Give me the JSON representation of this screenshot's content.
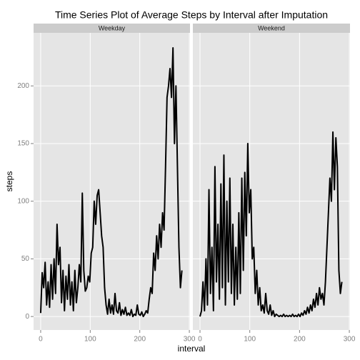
{
  "chart_data": {
    "type": "line",
    "title": "Time Series Plot of Average Steps by Interval after Imputation",
    "xlabel": "interval",
    "ylabel": "steps",
    "xlim": [
      -14.35,
      301.35
    ],
    "ylim": [
      -11.7,
      246
    ],
    "xticks": [
      0,
      100,
      200,
      300
    ],
    "yticks": [
      0,
      50,
      100,
      150,
      200
    ],
    "grid": true,
    "color": "#000000",
    "x": [
      0,
      3,
      6,
      9,
      12,
      15,
      18,
      21,
      24,
      27,
      30,
      33,
      36,
      39,
      42,
      45,
      48,
      51,
      54,
      57,
      60,
      63,
      66,
      69,
      72,
      75,
      78,
      81,
      84,
      87,
      90,
      93,
      96,
      99,
      102,
      105,
      108,
      111,
      114,
      117,
      120,
      123,
      126,
      129,
      132,
      135,
      138,
      141,
      144,
      147,
      150,
      153,
      156,
      159,
      162,
      165,
      168,
      171,
      174,
      177,
      180,
      183,
      186,
      189,
      192,
      195,
      198,
      201,
      204,
      207,
      210,
      213,
      216,
      219,
      222,
      225,
      228,
      231,
      234,
      237,
      240,
      243,
      246,
      249,
      252,
      255,
      258,
      261,
      264,
      267,
      270,
      273,
      276,
      279,
      282,
      285
    ],
    "panels": [
      {
        "name": "Weekday",
        "values": [
          3,
          38,
          25,
          47,
          10,
          30,
          8,
          45,
          15,
          50,
          20,
          80,
          45,
          60,
          12,
          40,
          5,
          35,
          15,
          45,
          10,
          30,
          5,
          40,
          12,
          25,
          45,
          30,
          107,
          40,
          22,
          25,
          35,
          30,
          55,
          60,
          100,
          80,
          105,
          110,
          90,
          70,
          60,
          25,
          10,
          2,
          15,
          3,
          10,
          2,
          20,
          5,
          3,
          12,
          1,
          6,
          2,
          8,
          1,
          3,
          1,
          6,
          0,
          2,
          1,
          10,
          2,
          1,
          4,
          0,
          2,
          5,
          3,
          15,
          25,
          20,
          55,
          40,
          70,
          50,
          80,
          60,
          90,
          75,
          130,
          190,
          200,
          215,
          190,
          233,
          150,
          200,
          130,
          60,
          25,
          40
        ]
      },
      {
        "name": "Weekend",
        "values": [
          0,
          5,
          30,
          5,
          50,
          10,
          110,
          20,
          60,
          5,
          130,
          30,
          80,
          15,
          115,
          25,
          140,
          10,
          100,
          30,
          120,
          20,
          80,
          10,
          60,
          15,
          90,
          20,
          120,
          40,
          125,
          70,
          150,
          90,
          110,
          50,
          60,
          20,
          40,
          10,
          25,
          5,
          10,
          3,
          20,
          5,
          2,
          10,
          1,
          5,
          0,
          2,
          1,
          0,
          1,
          0,
          2,
          0,
          1,
          0,
          1,
          0,
          2,
          0,
          1,
          0,
          2,
          0,
          3,
          1,
          5,
          2,
          8,
          3,
          10,
          5,
          15,
          8,
          20,
          10,
          25,
          15,
          20,
          10,
          30,
          60,
          90,
          120,
          100,
          160,
          110,
          155,
          130,
          40,
          20,
          30
        ]
      }
    ]
  }
}
